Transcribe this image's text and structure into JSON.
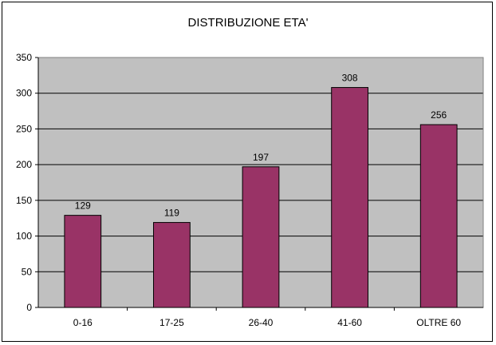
{
  "chart_data": {
    "type": "bar",
    "title": "DISTRIBUZIONE ETA'",
    "xlabel": "",
    "ylabel": "",
    "categories": [
      "0-16",
      "17-25",
      "26-40",
      "41-60",
      "OLTRE 60"
    ],
    "values": [
      129,
      119,
      197,
      308,
      256
    ],
    "data_labels": [
      "129",
      "119",
      "197",
      "308",
      "256"
    ],
    "ylim": [
      0,
      350
    ],
    "yticks": [
      0,
      50,
      100,
      150,
      200,
      250,
      300,
      350
    ],
    "ytick_labels": [
      "0",
      "50",
      "100",
      "150",
      "200",
      "250",
      "300",
      "350"
    ],
    "grid": true,
    "legend": "none",
    "colors": {
      "bar": "#993366",
      "plot_background": "#c0c0c0",
      "gridline": "#000000"
    }
  }
}
